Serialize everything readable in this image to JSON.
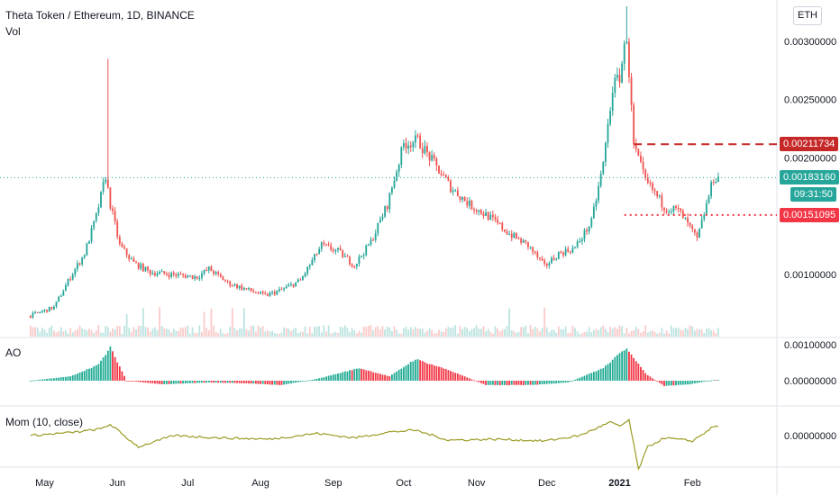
{
  "header": {
    "title": "Theta Token / Ethereum, 1D, BINANCE",
    "vol_label": "Vol",
    "currency_button": "ETH"
  },
  "panes": {
    "ao_label": "AO",
    "mom_label": "Mom (10, close)"
  },
  "price_axis": {
    "ticks": [
      "0.00300000",
      "0.00250000",
      "0.00200000",
      "0.00100000"
    ]
  },
  "ao_axis": {
    "ticks": [
      "0.00100000",
      "0.00000000"
    ]
  },
  "mom_axis": {
    "ticks": [
      "0.00000000"
    ]
  },
  "time_axis": {
    "labels": [
      "May",
      "Jun",
      "Jul",
      "Aug",
      "Sep",
      "Oct",
      "Nov",
      "Dec",
      "2021",
      "Feb"
    ]
  },
  "tags": {
    "resistance": {
      "text": "0.00211734",
      "color": "#c62828"
    },
    "last_price": {
      "text": "0.00183160",
      "color": "#26a69a"
    },
    "countdown": {
      "text": "09:31:50",
      "color": "#26a69a"
    },
    "support": {
      "text": "0.00151095",
      "color": "#f23645"
    }
  },
  "colors": {
    "up": "#26a69a",
    "down": "#ef5350",
    "ao_up": "#22ab94",
    "ao_down": "#f23645",
    "momentum": "#9c9a23",
    "resistance_line": "#c62828",
    "support_line": "#f23645",
    "last_line": "#26a69a"
  },
  "chart_data": {
    "type": "candlestick",
    "symbol": "Theta Token / Ethereum",
    "interval": "1D",
    "exchange": "BINANCE",
    "ylim": [
      0.0006,
      0.0033
    ],
    "x_start": "2020-04-25",
    "x_end": "2021-02-12",
    "close_series": [
      [
        "2020-04-25",
        0.00065
      ],
      [
        "2020-05-05",
        0.00072
      ],
      [
        "2020-05-12",
        0.00098
      ],
      [
        "2020-05-18",
        0.00118
      ],
      [
        "2020-05-23",
        0.0015
      ],
      [
        "2020-05-27",
        0.00185
      ],
      [
        "2020-05-29",
        0.0016
      ],
      [
        "2020-06-02",
        0.00125
      ],
      [
        "2020-06-08",
        0.0011
      ],
      [
        "2020-06-15",
        0.00102
      ],
      [
        "2020-06-25",
        0.001
      ],
      [
        "2020-07-05",
        0.00098
      ],
      [
        "2020-07-10",
        0.00105
      ],
      [
        "2020-07-18",
        0.00093
      ],
      [
        "2020-07-25",
        0.00088
      ],
      [
        "2020-08-03",
        0.00082
      ],
      [
        "2020-08-10",
        0.00087
      ],
      [
        "2020-08-18",
        0.00095
      ],
      [
        "2020-08-27",
        0.00125
      ],
      [
        "2020-09-03",
        0.0012
      ],
      [
        "2020-09-10",
        0.00108
      ],
      [
        "2020-09-17",
        0.00128
      ],
      [
        "2020-09-24",
        0.0016
      ],
      [
        "2020-10-01",
        0.00212
      ],
      [
        "2020-10-07",
        0.00215
      ],
      [
        "2020-10-14",
        0.00195
      ],
      [
        "2020-10-21",
        0.00175
      ],
      [
        "2020-10-29",
        0.0016
      ],
      [
        "2020-11-06",
        0.0015
      ],
      [
        "2020-11-15",
        0.00135
      ],
      [
        "2020-11-23",
        0.00125
      ],
      [
        "2020-11-30",
        0.00107
      ],
      [
        "2020-12-06",
        0.00118
      ],
      [
        "2020-12-13",
        0.00123
      ],
      [
        "2020-12-20",
        0.00145
      ],
      [
        "2020-12-25",
        0.00195
      ],
      [
        "2020-12-29",
        0.0026
      ],
      [
        "2021-01-01",
        0.0027
      ],
      [
        "2021-01-04",
        0.00305
      ],
      [
        "2021-01-07",
        0.0021
      ],
      [
        "2021-01-12",
        0.0018
      ],
      [
        "2021-01-16",
        0.0017
      ],
      [
        "2021-01-20",
        0.00158
      ],
      [
        "2021-01-26",
        0.00155
      ],
      [
        "2021-01-31",
        0.0014
      ],
      [
        "2021-02-03",
        0.0013
      ],
      [
        "2021-02-07",
        0.0016
      ],
      [
        "2021-02-10",
        0.00183
      ]
    ],
    "spikes": [
      [
        "2020-05-28",
        0.00285
      ],
      [
        "2021-01-04",
        0.0033
      ]
    ],
    "levels": {
      "resistance": 0.00211734,
      "last_price": 0.0018316,
      "support": 0.00151095
    },
    "ao_series": [
      [
        "2020-04-25",
        0.0
      ],
      [
        "2020-05-12",
        0.00012
      ],
      [
        "2020-05-24",
        0.00045
      ],
      [
        "2020-05-29",
        0.00092
      ],
      [
        "2020-06-05",
        0.0
      ],
      [
        "2020-06-20",
        -0.0001
      ],
      [
        "2020-07-10",
        -5e-05
      ],
      [
        "2020-07-25",
        -7e-05
      ],
      [
        "2020-08-10",
        -0.00012
      ],
      [
        "2020-08-25",
        5e-05
      ],
      [
        "2020-09-12",
        0.00035
      ],
      [
        "2020-09-25",
        0.00012
      ],
      [
        "2020-10-06",
        0.0006
      ],
      [
        "2020-10-20",
        0.0003
      ],
      [
        "2020-11-05",
        -0.00012
      ],
      [
        "2020-11-25",
        -0.00012
      ],
      [
        "2020-12-10",
        -5e-05
      ],
      [
        "2020-12-25",
        0.00035
      ],
      [
        "2021-01-04",
        0.00092
      ],
      [
        "2021-01-12",
        0.0002
      ],
      [
        "2021-01-20",
        -0.00015
      ],
      [
        "2021-01-31",
        -0.0001
      ],
      [
        "2021-02-10",
        2e-05
      ]
    ],
    "mom_series": [
      [
        "2020-04-25",
        0.0
      ],
      [
        "2020-05-15",
        8e-05
      ],
      [
        "2020-05-25",
        0.00015
      ],
      [
        "2020-05-29",
        0.00025
      ],
      [
        "2020-06-05",
        -5e-05
      ],
      [
        "2020-06-10",
        -0.00025
      ],
      [
        "2020-06-25",
        0.0
      ],
      [
        "2020-07-15",
        -5e-05
      ],
      [
        "2020-08-05",
        -8e-05
      ],
      [
        "2020-08-25",
        5e-05
      ],
      [
        "2020-09-10",
        -5e-05
      ],
      [
        "2020-09-25",
        8e-05
      ],
      [
        "2020-10-06",
        0.00012
      ],
      [
        "2020-10-20",
        -0.0001
      ],
      [
        "2020-11-10",
        -8e-05
      ],
      [
        "2020-11-30",
        -0.00012
      ],
      [
        "2020-12-15",
        0.0
      ],
      [
        "2020-12-28",
        0.0003
      ],
      [
        "2021-01-01",
        0.0002
      ],
      [
        "2021-01-05",
        0.00035
      ],
      [
        "2021-01-09",
        -0.00075
      ],
      [
        "2021-01-13",
        -0.00025
      ],
      [
        "2021-01-20",
        -5e-05
      ],
      [
        "2021-02-01",
        -0.00012
      ],
      [
        "2021-02-10",
        0.0002
      ]
    ],
    "title": "Theta Token / Ethereum, 1D, BINANCE"
  }
}
